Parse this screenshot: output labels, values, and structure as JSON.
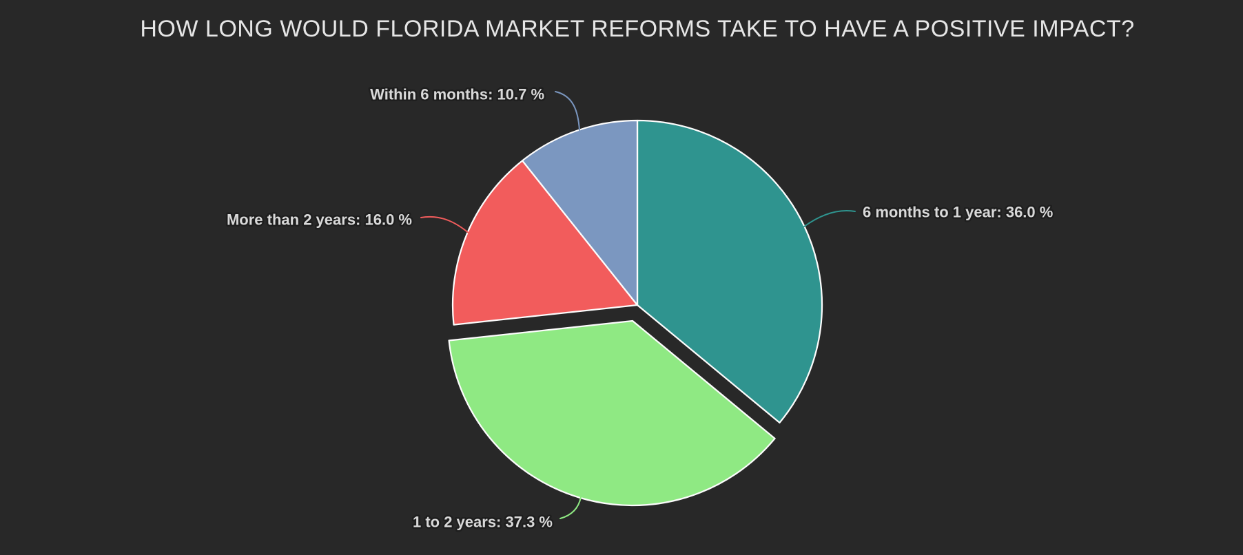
{
  "background_color": "#282828",
  "chart_data": {
    "type": "pie",
    "title": "HOW LONG WOULD FLORIDA MARKET REFORMS TAKE TO HAVE A POSITIVE IMPACT?",
    "unit": "%",
    "direction": "clockwise",
    "start_angle_deg": 0,
    "legend_position": "none",
    "labels_outside_with_leader_lines": true,
    "slices": [
      {
        "label": "6 months to 1 year",
        "value": 36.0,
        "display": "6 months to 1 year: 36.0 %",
        "color": "#2f948f",
        "exploded": false
      },
      {
        "label": "1 to 2 years",
        "value": 37.3,
        "display": "1 to 2 years: 37.3 %",
        "color": "#8fe983",
        "exploded": true
      },
      {
        "label": "More than 2 years",
        "value": 16.0,
        "display": "More than 2 years: 16.0 %",
        "color": "#f25c5c",
        "exploded": false
      },
      {
        "label": "Within 6 months",
        "value": 10.7,
        "display": "Within 6 months: 10.7 %",
        "color": "#7b97c0",
        "exploded": false
      }
    ],
    "slice_border_color": "#fcfcfc",
    "title_color": "#e6e6e6",
    "label_text_color": "#d9d9d9",
    "label_halo_color": "#1e1e1e"
  }
}
